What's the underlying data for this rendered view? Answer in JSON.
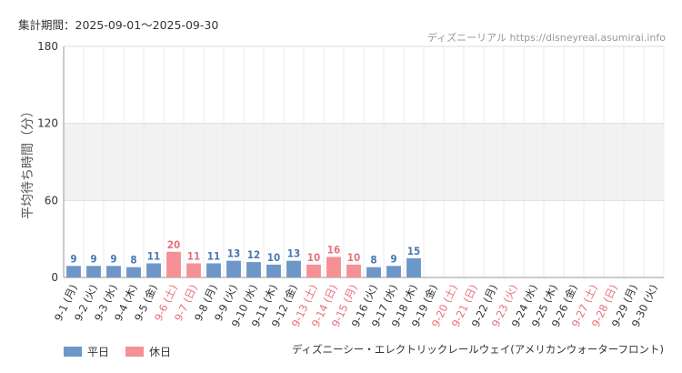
{
  "header": {
    "period_label": "集計期間：2025-09-01〜2025-09-30",
    "site_credit": "ディズニーリアル https://disneyreal.asumirai.info"
  },
  "footer": {
    "attraction_name": "ディズニーシー・エレクトリックレールウェイ(アメリカンウォーターフロント)"
  },
  "legend": {
    "weekday_label": "平日",
    "holiday_label": "休日"
  },
  "colors": {
    "weekday": "#6d97c8",
    "holiday": "#f49096",
    "weekday_text": "#4a78b0",
    "holiday_text": "#e8707a"
  },
  "chart_data": {
    "type": "bar",
    "ylabel": "平均待ち時間（分）",
    "xlabel": "",
    "ylim": [
      0,
      180
    ],
    "yticks": [
      0,
      60,
      120,
      180
    ],
    "categories": [
      "9-1 (月)",
      "9-2 (火)",
      "9-3 (水)",
      "9-4 (木)",
      "9-5 (金)",
      "9-6 (土)",
      "9-7 (日)",
      "9-8 (月)",
      "9-9 (火)",
      "9-10 (水)",
      "9-11 (木)",
      "9-12 (金)",
      "9-13 (土)",
      "9-14 (日)",
      "9-15 (月)",
      "9-16 (火)",
      "9-17 (水)",
      "9-18 (木)",
      "9-19 (金)",
      "9-20 (土)",
      "9-21 (日)",
      "9-22 (月)",
      "9-23 (火)",
      "9-24 (水)",
      "9-25 (木)",
      "9-26 (金)",
      "9-27 (土)",
      "9-28 (日)",
      "9-29 (月)",
      "9-30 (火)"
    ],
    "values": [
      9,
      9,
      9,
      8,
      11,
      20,
      11,
      11,
      13,
      12,
      10,
      13,
      10,
      16,
      10,
      8,
      9,
      15,
      null,
      null,
      null,
      null,
      null,
      null,
      null,
      null,
      null,
      null,
      null,
      null
    ],
    "holiday": [
      false,
      false,
      false,
      false,
      false,
      true,
      true,
      false,
      false,
      false,
      false,
      false,
      true,
      true,
      true,
      false,
      false,
      false,
      false,
      true,
      true,
      false,
      true,
      false,
      false,
      false,
      true,
      true,
      false,
      false
    ],
    "series": [
      {
        "name": "平日",
        "type": "weekday"
      },
      {
        "name": "休日",
        "type": "holiday"
      }
    ],
    "grid": true,
    "legend": "bottom-left"
  }
}
